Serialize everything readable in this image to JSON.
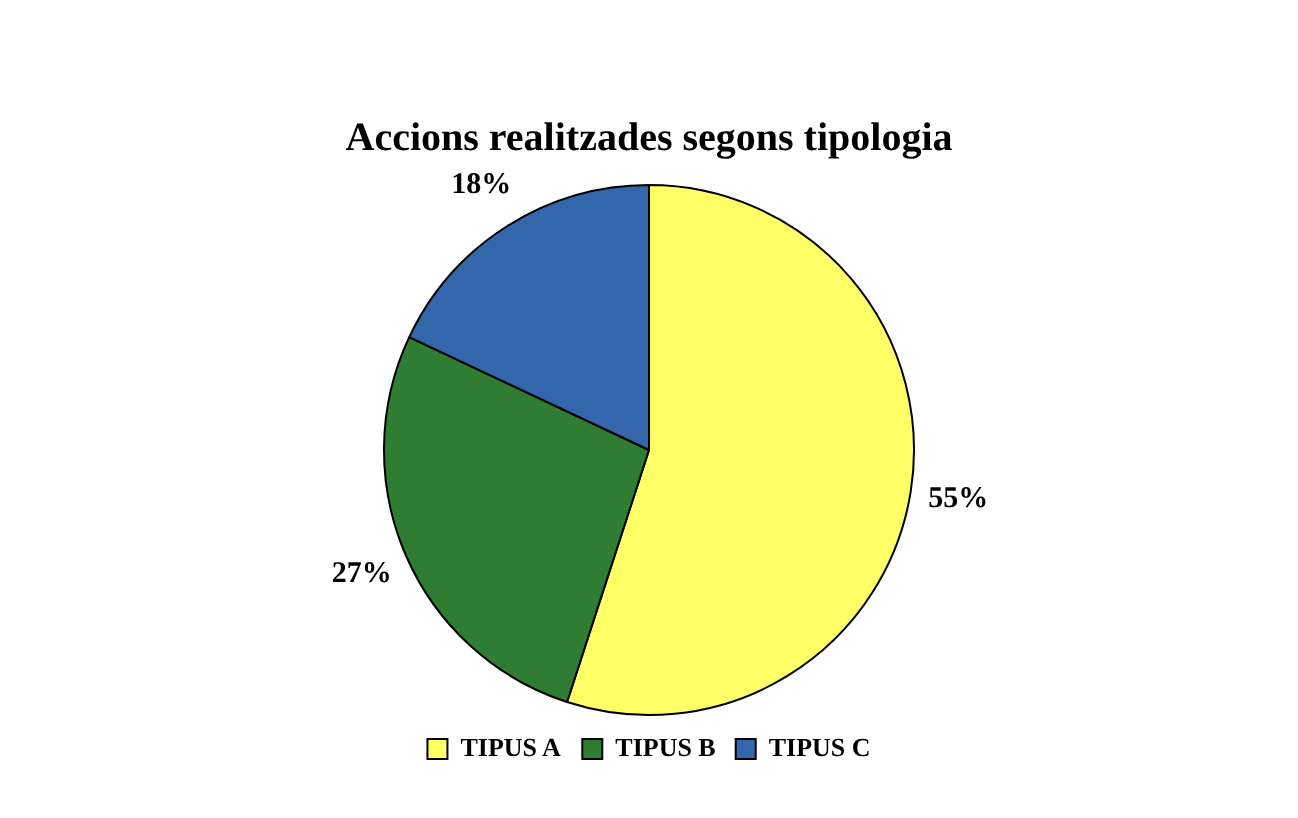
{
  "chart_data": {
    "type": "pie",
    "title": "Accions realitzades segons tipologia",
    "categories": [
      "TIPUS A",
      "TIPUS B",
      "TIPUS C"
    ],
    "values": [
      55,
      27,
      18
    ],
    "colors": [
      "#ffff66",
      "#2e7d32",
      "#3366aa"
    ],
    "value_labels": [
      "55%",
      "27%",
      "18%"
    ],
    "legend": "bottom"
  }
}
